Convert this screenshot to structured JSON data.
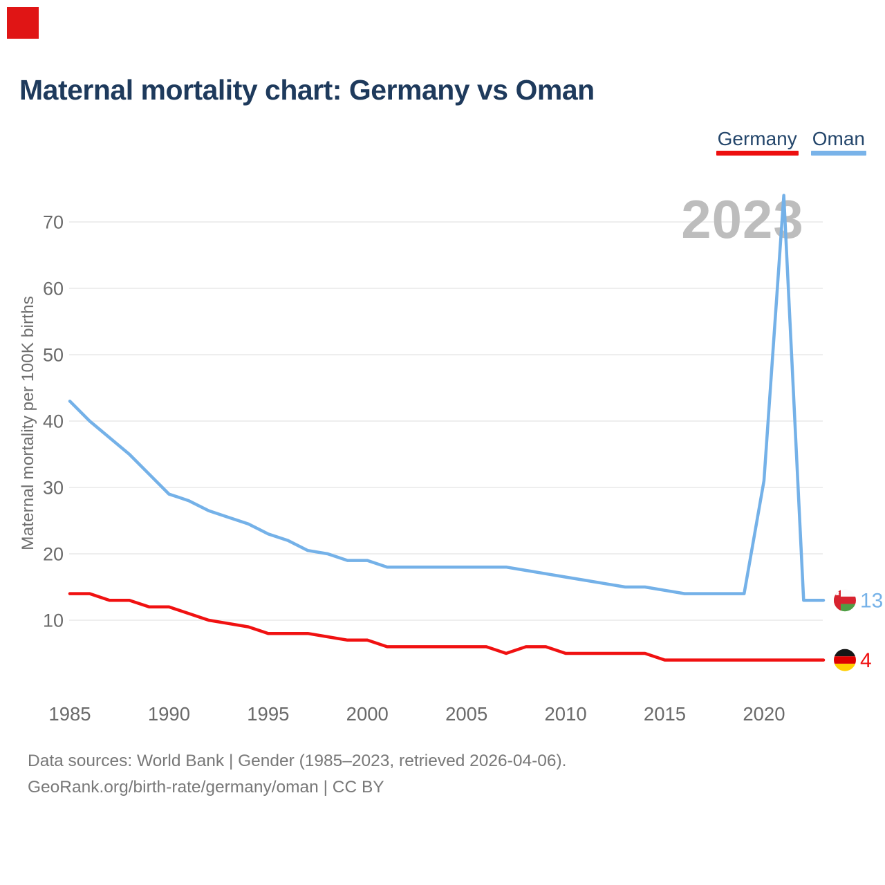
{
  "page": {
    "background": "#ffffff",
    "corner_marker_color": "#e01515"
  },
  "header": {
    "title": "Maternal mortality chart: Germany vs Oman"
  },
  "legend": {
    "items": [
      {
        "label": "Germany",
        "color": "#ed0f0f"
      },
      {
        "label": "Oman",
        "color": "#79b3e9"
      }
    ]
  },
  "watermark": "2023",
  "footer": {
    "line1": "Data sources: World Bank | Gender (1985–2023, retrieved 2026-04-06).",
    "line2": "GeoRank.org/birth-rate/germany/oman | CC BY"
  },
  "chart_data": {
    "type": "line",
    "title": "Maternal mortality chart: Germany vs Oman",
    "ylabel": "Maternal mortality per 100K births",
    "xlabel": "",
    "x": [
      1985,
      1986,
      1987,
      1988,
      1989,
      1990,
      1991,
      1992,
      1993,
      1994,
      1995,
      1996,
      1997,
      1998,
      1999,
      2000,
      2001,
      2002,
      2003,
      2004,
      2005,
      2006,
      2007,
      2008,
      2009,
      2010,
      2011,
      2012,
      2013,
      2014,
      2015,
      2016,
      2017,
      2018,
      2019,
      2020,
      2021,
      2022,
      2023
    ],
    "x_tick_labels": [
      "1985",
      "1990",
      "1995",
      "2000",
      "2005",
      "2010",
      "2015",
      "2020"
    ],
    "y_ticks": [
      10,
      20,
      30,
      40,
      50,
      60,
      70
    ],
    "xlim": [
      1985,
      2023
    ],
    "ylim": [
      0,
      77
    ],
    "grid": "horizontal",
    "legend_position": "top-right",
    "series": [
      {
        "name": "Oman",
        "color": "#74b1e8",
        "end_label": "13",
        "flag": "oman",
        "values": [
          43,
          40,
          37.5,
          35,
          32,
          29,
          28,
          26.5,
          25.5,
          24.5,
          23,
          22,
          20.5,
          20,
          19,
          19,
          18,
          18,
          18,
          18,
          18,
          18,
          18,
          17.5,
          17,
          16.5,
          16,
          15.5,
          15,
          15,
          14.5,
          14,
          14,
          14,
          14,
          31,
          74,
          13,
          13
        ]
      },
      {
        "name": "Germany",
        "color": "#f01111",
        "end_label": "4",
        "flag": "germany",
        "values": [
          14,
          14,
          13,
          13,
          12,
          12,
          11,
          10,
          9.5,
          9,
          8,
          8,
          8,
          7.5,
          7,
          7,
          6,
          6,
          6,
          6,
          6,
          6,
          5,
          6,
          6,
          5,
          5,
          5,
          5,
          5,
          4,
          4,
          4,
          4,
          4,
          4,
          4,
          4,
          4
        ]
      }
    ],
    "flag_colors": {
      "oman": {
        "hoist_red": "#d8232f",
        "white": "#fbfbfb",
        "mid_red": "#d8232f",
        "green": "#4f9e45"
      },
      "germany": {
        "black": "#161616",
        "red": "#dd0000",
        "gold": "#ffce00"
      }
    }
  }
}
